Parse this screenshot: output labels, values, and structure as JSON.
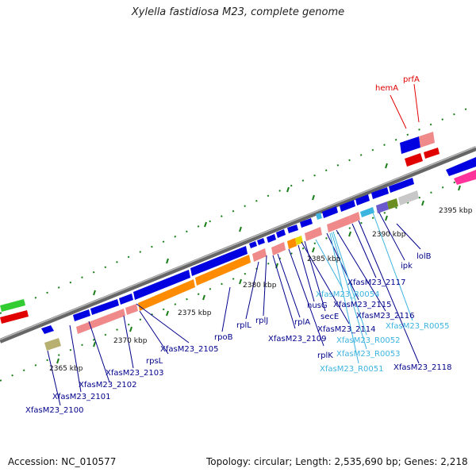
{
  "title": "Xylella fastidiosa M23, complete genome",
  "footer": {
    "accession": "Accession: NC_010577",
    "topology": "Topology: circular; Length: 2,535,690 bp; Genes: 2,218"
  },
  "colors": {
    "cds": "#0000e0",
    "rna": "#f08a8a",
    "orange": "#ff8c00",
    "label_gene": "#00008b",
    "label_rna": "#3cb4e0",
    "label_red": "#e00000",
    "tick": "#1a7f1a"
  },
  "axis_labels": [
    "2365 kbp",
    "2370 kbp",
    "2375 kbp",
    "2380 kbp",
    "2385 kbp",
    "2390 kbp",
    "2395 kbp"
  ],
  "gene_labels": [
    {
      "text": "XfasM23_2100",
      "type": "gene"
    },
    {
      "text": "XfasM23_2101",
      "type": "gene"
    },
    {
      "text": "XfasM23_2102",
      "type": "gene"
    },
    {
      "text": "XfasM23_2103",
      "type": "gene"
    },
    {
      "text": "rpsL",
      "type": "gene"
    },
    {
      "text": "XfasM23_2105",
      "type": "gene"
    },
    {
      "text": "rpoB",
      "type": "gene"
    },
    {
      "text": "rplL",
      "type": "gene"
    },
    {
      "text": "rplJ",
      "type": "gene"
    },
    {
      "text": "XfasM23_2109",
      "type": "gene"
    },
    {
      "text": "rplA",
      "type": "gene"
    },
    {
      "text": "rplK",
      "type": "gene"
    },
    {
      "text": "nusG",
      "type": "gene"
    },
    {
      "text": "XfasM23_2114",
      "type": "gene"
    },
    {
      "text": "secE",
      "type": "gene"
    },
    {
      "text": "XfasM23_R0054",
      "type": "rna"
    },
    {
      "text": "XfasM23_2115",
      "type": "gene"
    },
    {
      "text": "XfasM23_2117",
      "type": "gene"
    },
    {
      "text": "XfasM23_2116",
      "type": "gene"
    },
    {
      "text": "XfasM23_R0052",
      "type": "rna"
    },
    {
      "text": "XfasM23_R0053",
      "type": "rna"
    },
    {
      "text": "XfasM23_R0051",
      "type": "rna"
    },
    {
      "text": "XfasM23_R0055",
      "type": "rna"
    },
    {
      "text": "XfasM23_2118",
      "type": "gene"
    },
    {
      "text": "ipk",
      "type": "gene"
    },
    {
      "text": "lolB",
      "type": "gene"
    },
    {
      "text": "hemA",
      "type": "red"
    },
    {
      "text": "prfA",
      "type": "red"
    }
  ]
}
